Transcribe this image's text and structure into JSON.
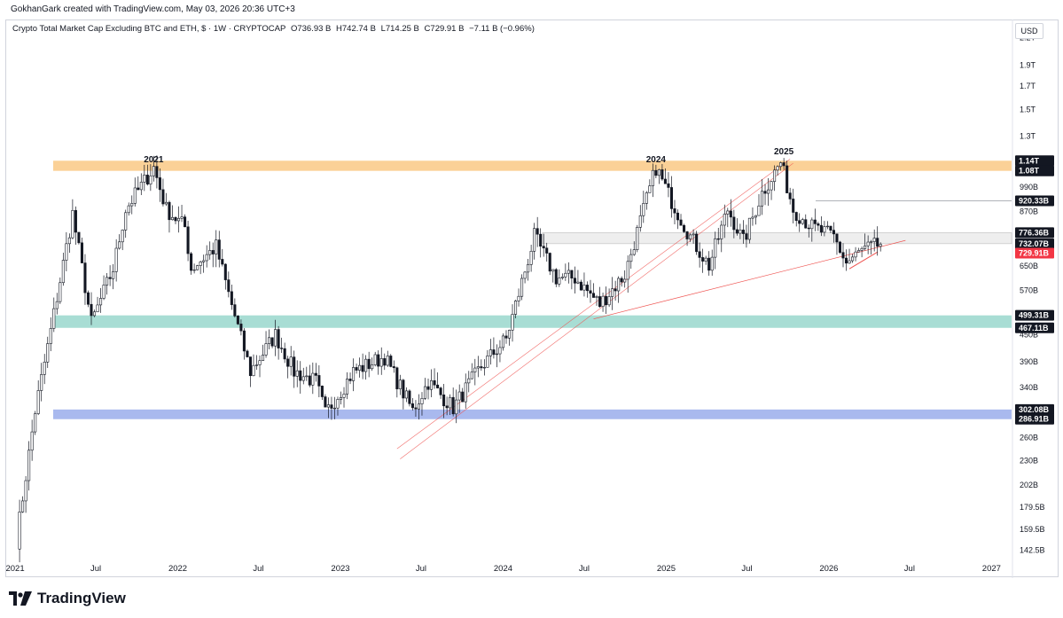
{
  "credit": "GokhanGark created with TradingView.com, May 03, 2026 20:36 UTC+3",
  "legend": {
    "title": "Crypto Total Market Cap Excluding BTC and ETH, $ · 1W · CRYPTOCAP",
    "open": "O736.93 B",
    "high": "H742.74 B",
    "low": "L714.25 B",
    "close": "C729.91 B",
    "change": "−7.11 B (−0.96%)"
  },
  "currency": "USD",
  "logo_text": "TradingView",
  "colors": {
    "up": "#ffffff",
    "down": "#131722",
    "orange_zone": "#fbd197",
    "teal_zone": "#a8ddd4",
    "blue_zone": "#a9b9ee",
    "grey_zone": "#eeeeee",
    "trend": "#ef5350",
    "price_tag": "#f23645"
  },
  "chart_data": {
    "type": "candlestick",
    "scale": "log",
    "ylim": [
      135,
      2400
    ],
    "x_ticks": [
      "2021",
      "Jul",
      "2022",
      "Jul",
      "2023",
      "Jul",
      "2024",
      "Jul",
      "2025",
      "Jul",
      "2026",
      "Jul",
      "2027"
    ],
    "y_ticks": [
      "2.2T",
      "1.9T",
      "1.7T",
      "1.5T",
      "1.3T",
      "990B",
      "870B",
      "650B",
      "570B",
      "450B",
      "390B",
      "340B",
      "260B",
      "230B",
      "202B",
      "179.5B",
      "159.5B",
      "142.5B"
    ],
    "y_tick_values": [
      2200,
      1900,
      1700,
      1500,
      1300,
      990,
      870,
      650,
      570,
      450,
      390,
      340,
      260,
      230,
      202,
      179.5,
      159.5,
      142.5
    ],
    "annotations": [
      "2021",
      "2024",
      "2025"
    ],
    "annotation_values": [
      1120,
      1120,
      1170
    ],
    "zones": [
      {
        "name": "orange",
        "top": 1140,
        "bottom": 1080
      },
      {
        "name": "grey",
        "top": 776.36,
        "bottom": 732.07
      },
      {
        "name": "teal",
        "top": 499.31,
        "bottom": 467.11
      },
      {
        "name": "blue",
        "top": 302.08,
        "bottom": 286.91
      }
    ],
    "price_labels": [
      {
        "text": "1.14T",
        "value": 1140,
        "style": "dark"
      },
      {
        "text": "1.08T",
        "value": 1080,
        "style": "dark"
      },
      {
        "text": "920.33B",
        "value": 920.33,
        "style": "dark"
      },
      {
        "text": "776.36B",
        "value": 776.36,
        "style": "dark"
      },
      {
        "text": "732.07B",
        "value": 732.07,
        "style": "dark"
      },
      {
        "text": "729.91B",
        "value": 729.91,
        "style": "red"
      },
      {
        "text": "499.31B",
        "value": 499.31,
        "style": "dark"
      },
      {
        "text": "467.11B",
        "value": 467.11,
        "style": "dark"
      },
      {
        "text": "302.08B",
        "value": 302.08,
        "style": "dark"
      },
      {
        "text": "286.91B",
        "value": 286.91,
        "style": "dark"
      }
    ],
    "horizontal_line": 920.33,
    "current_price": 729.91,
    "anchors": [
      [
        "2021-01-04",
        150
      ],
      [
        "2021-02-15",
        300
      ],
      [
        "2021-03-22",
        460
      ],
      [
        "2021-05-10",
        860
      ],
      [
        "2021-06-21",
        480
      ],
      [
        "2021-08-09",
        640
      ],
      [
        "2021-09-06",
        880
      ],
      [
        "2021-11-08",
        1100
      ],
      [
        "2021-12-06",
        880
      ],
      [
        "2022-01-17",
        800
      ],
      [
        "2022-01-31",
        640
      ],
      [
        "2022-03-28",
        720
      ],
      [
        "2022-04-25",
        560
      ],
      [
        "2022-06-13",
        370
      ],
      [
        "2022-08-08",
        450
      ],
      [
        "2022-09-19",
        370
      ],
      [
        "2022-11-07",
        350
      ],
      [
        "2022-11-28",
        295
      ],
      [
        "2023-01-30",
        370
      ],
      [
        "2023-04-10",
        400
      ],
      [
        "2023-06-12",
        300
      ],
      [
        "2023-07-17",
        350
      ],
      [
        "2023-09-11",
        305
      ],
      [
        "2023-11-13",
        380
      ],
      [
        "2024-01-08",
        440
      ],
      [
        "2024-03-11",
        760
      ],
      [
        "2024-04-29",
        610
      ],
      [
        "2024-06-10",
        610
      ],
      [
        "2024-08-05",
        530
      ],
      [
        "2024-09-30",
        620
      ],
      [
        "2024-12-09",
        1100
      ],
      [
        "2025-01-13",
        920
      ],
      [
        "2025-02-24",
        760
      ],
      [
        "2025-04-07",
        650
      ],
      [
        "2025-05-19",
        880
      ],
      [
        "2025-06-23",
        740
      ],
      [
        "2025-08-04",
        960
      ],
      [
        "2025-09-15",
        1130
      ],
      [
        "2025-10-13",
        880
      ],
      [
        "2025-11-24",
        800
      ],
      [
        "2026-01-12",
        760
      ],
      [
        "2026-02-09",
        660
      ],
      [
        "2026-03-16",
        705
      ],
      [
        "2026-04-27",
        730
      ]
    ],
    "time_range": [
      "2020-12-14",
      "2027-02-15"
    ]
  }
}
